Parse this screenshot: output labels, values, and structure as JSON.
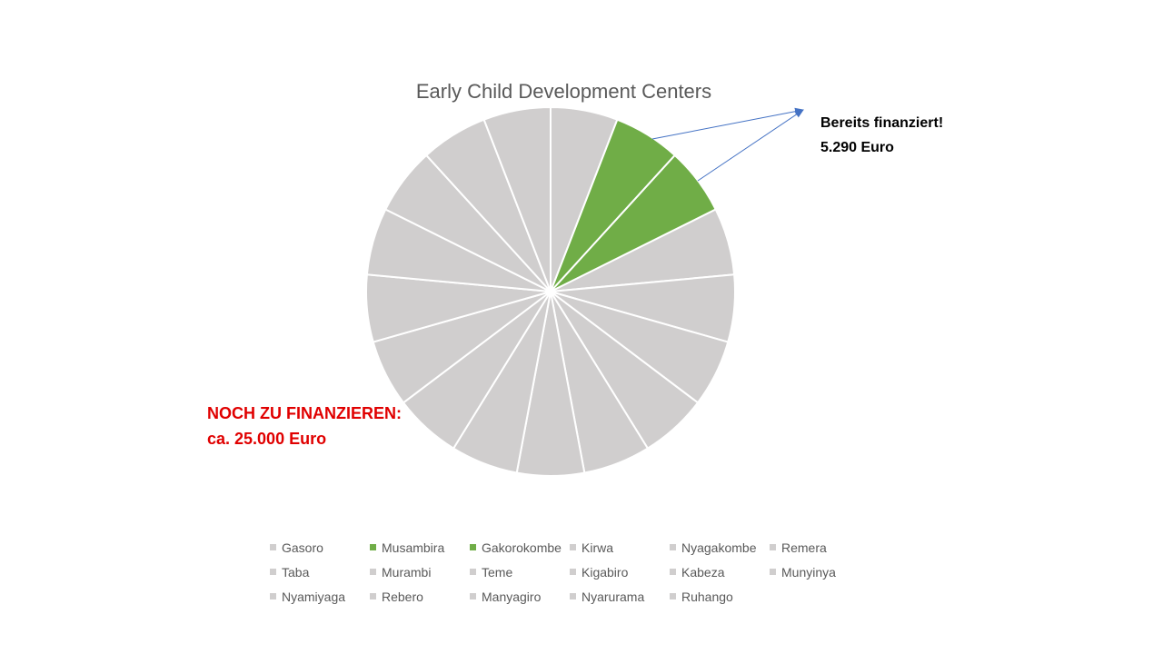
{
  "chart_data": {
    "type": "pie",
    "title": "Early Child Development Centers",
    "categories": [
      "Gasoro",
      "Musambira",
      "Gakorokombe",
      "Kirwa",
      "Nyagakombe",
      "Remera",
      "Taba",
      "Murambi",
      "Teme",
      "Kigabiro",
      "Kabeza",
      "Munyinya",
      "Nyamiyaga",
      "Rebero",
      "Manyagiro",
      "Nyarurama",
      "Ruhango"
    ],
    "values": [
      1,
      1,
      1,
      1,
      1,
      1,
      1,
      1,
      1,
      1,
      1,
      1,
      1,
      1,
      1,
      1,
      1
    ],
    "colors": [
      "#d0cece",
      "#70ad47",
      "#70ad47",
      "#d0cece",
      "#d0cece",
      "#d0cece",
      "#d0cece",
      "#d0cece",
      "#d0cece",
      "#d0cece",
      "#d0cece",
      "#d0cece",
      "#d0cece",
      "#d0cece",
      "#d0cece",
      "#d0cece",
      "#d0cece"
    ],
    "legend_position": "bottom"
  },
  "annotations": {
    "funded_line1": "Bereits finanziert!",
    "funded_line2": "5.290 Euro",
    "open_line1": "NOCH ZU FINANZIEREN:",
    "open_line2": "ca. 25.000 Euro"
  },
  "colors": {
    "funded": "#70ad47",
    "open": "#d0cece",
    "arrow": "#4472c4",
    "open_text": "#e00000"
  }
}
